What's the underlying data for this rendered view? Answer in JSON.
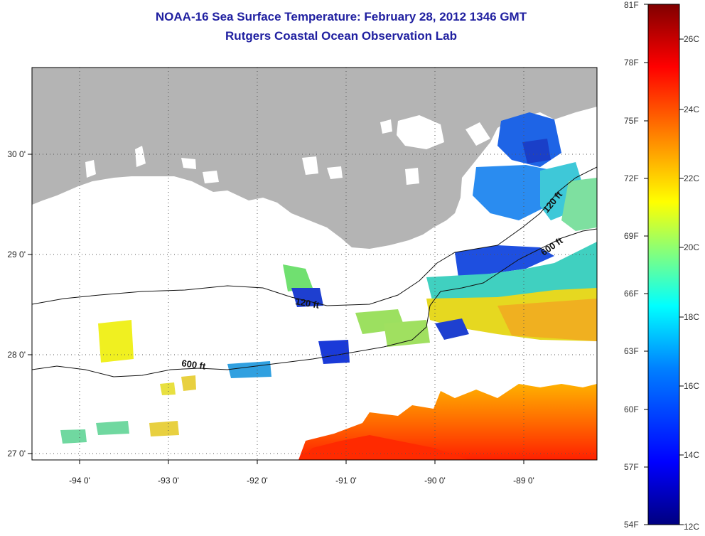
{
  "title": {
    "line1": "NOAA-16 Sea Surface Temperature:  February 28, 2012 1346 GMT",
    "line2": "Rutgers Coastal Ocean Observation Lab"
  },
  "axes": {
    "lon_ticks": [
      "-94 0'",
      "-93 0'",
      "-92 0'",
      "-91 0'",
      "-90 0'",
      "-89 0'"
    ],
    "lat_ticks": [
      "30 0'",
      "29 0'",
      "28 0'",
      "27 0'"
    ]
  },
  "contours": {
    "label_120": "120 ft",
    "label_600": "600 ft"
  },
  "colorbar": {
    "f_labels": [
      "81F",
      "78F",
      "75F",
      "72F",
      "69F",
      "66F",
      "63F",
      "60F",
      "57F",
      "54F"
    ],
    "c_labels": [
      "26C",
      "24C",
      "22C",
      "20C",
      "18C",
      "16C",
      "14C",
      "12C"
    ]
  },
  "colors": {
    "land": "#b4b4b4",
    "title": "#1f1fa0",
    "scale": [
      "#800000",
      "#ff0000",
      "#ff8000",
      "#ffff00",
      "#80ff80",
      "#00ffff",
      "#0080ff",
      "#0000ff",
      "#000080"
    ]
  }
}
